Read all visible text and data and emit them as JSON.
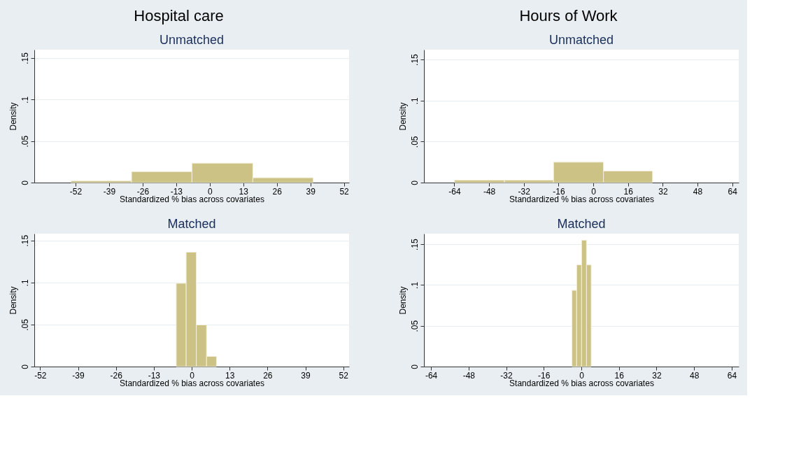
{
  "chart_data": [
    {
      "type": "histogram",
      "title": "Hospital care",
      "subtitle": "Unmatched",
      "xlabel": "Standardized % bias across covariates",
      "ylabel": "Density",
      "color": "#ccc285",
      "bins": [
        -53.8,
        -30.3,
        -6.9,
        16.7,
        40.1
      ],
      "values": [
        0.0021,
        0.0132,
        0.0234,
        0.0058
      ],
      "xlim": [
        -68,
        54
      ],
      "xticks": [
        -52,
        -39,
        -26,
        -13,
        0,
        13,
        26,
        39,
        52
      ],
      "ylim": [
        0,
        0.16
      ],
      "yticks": [
        0,
        {
          "value": 0.05,
          "label": ".05"
        },
        {
          "value": 0.1,
          "label": ".1"
        },
        {
          "value": 0.15,
          "label": ".15"
        }
      ],
      "grid": "y"
    },
    {
      "type": "histogram",
      "subtitle": "Matched",
      "xlabel": "Standardized % bias across covariates",
      "ylabel": "Density",
      "color": "#ccc285",
      "bins": [
        -5.3,
        -1.9,
        1.6,
        5.1,
        8.5
      ],
      "values": [
        0.099,
        0.136,
        0.0495,
        0.0121
      ],
      "xlim": [
        -54,
        54
      ],
      "xticks": [
        -52,
        -39,
        -26,
        -13,
        0,
        13,
        26,
        39,
        52
      ],
      "ylim": [
        0,
        0.158
      ],
      "yticks": [
        0,
        {
          "value": 0.05,
          "label": ".05"
        },
        {
          "value": 0.1,
          "label": ".1"
        },
        {
          "value": 0.15,
          "label": ".15"
        }
      ],
      "grid": "y"
    },
    {
      "type": "histogram",
      "title": "Hours of Work",
      "subtitle": "Unmatched",
      "xlabel": "Standardized % bias across covariates",
      "ylabel": "Density",
      "color": "#ccc285",
      "bins": [
        -63.9,
        -40.9,
        -18.3,
        4.7,
        27.3
      ],
      "values": [
        0.003,
        0.003,
        0.0249,
        0.0141
      ],
      "xlim": [
        -78,
        67
      ],
      "xticks": [
        -64,
        -48,
        -32,
        -16,
        0,
        16,
        32,
        48,
        64
      ],
      "ylim": [
        0,
        0.162
      ],
      "yticks": [
        0,
        {
          "value": 0.05,
          "label": ".05"
        },
        {
          "value": 0.1,
          "label": ".1"
        },
        {
          "value": 0.15,
          "label": ".15"
        }
      ],
      "grid": "y"
    },
    {
      "type": "histogram",
      "subtitle": "Matched",
      "xlabel": "Standardized % bias across covariates",
      "ylabel": "Density",
      "color": "#ccc285",
      "bins": [
        -4.0,
        -2.0,
        0.1,
        2.2,
        4.2
      ],
      "values": [
        0.0935,
        0.1247,
        0.155,
        0.1247
      ],
      "xlim": [
        -67,
        67
      ],
      "xticks": [
        -64,
        -48,
        -32,
        -16,
        0,
        16,
        32,
        48,
        64
      ],
      "ylim": [
        0,
        0.163
      ],
      "yticks": [
        0,
        {
          "value": 0.05,
          "label": ".05"
        },
        {
          "value": 0.1,
          "label": ".1"
        },
        {
          "value": 0.15,
          "label": ".15"
        }
      ],
      "grid": "y"
    }
  ]
}
